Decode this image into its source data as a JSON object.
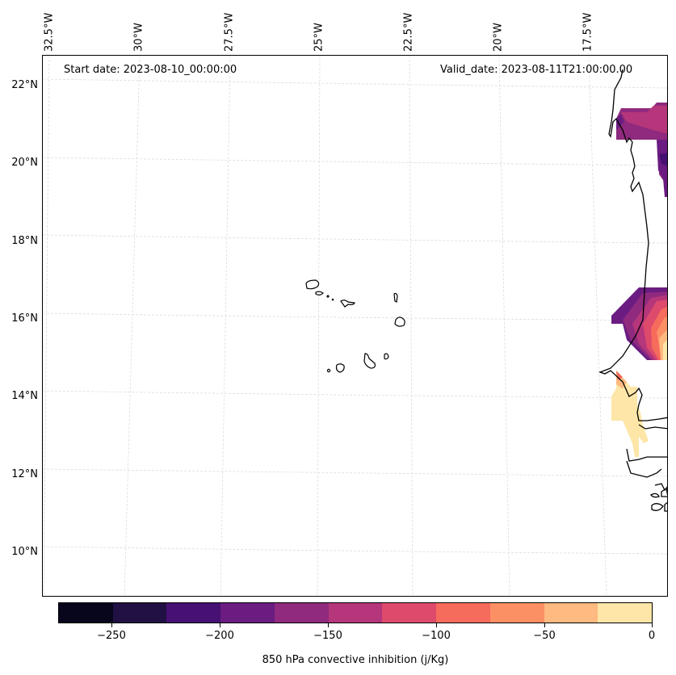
{
  "header": {
    "start_date": "Start date: 2023-08-10_00:00:00",
    "valid_date": "Valid_date: 2023-08-11T21:00:00.00"
  },
  "map": {
    "lon_labels": [
      "32.5°W",
      "30°W",
      "27.5°W",
      "25°W",
      "22.5°W",
      "20°W",
      "17.5°W"
    ],
    "lat_labels": [
      "22°N",
      "20°N",
      "18°N",
      "16°N",
      "14°N",
      "12°N",
      "10°N"
    ],
    "features": [
      "Cape Verde Islands",
      "West African coastline (Mauritania, Senegal, Gambia, Guinea-Bissau)"
    ]
  },
  "colorbar": {
    "title": "850 hPa convective inhibition (j/Kg)",
    "tick_labels": [
      "−250",
      "−200",
      "−150",
      "−100",
      "−50",
      "0"
    ],
    "colors": [
      "#07061c",
      "#211044",
      "#471173",
      "#6a1c81",
      "#8f2a7e",
      "#b5367a",
      "#dd4a6b",
      "#f56b5c",
      "#fc9065",
      "#feba80",
      "#fde6a7"
    ]
  },
  "chart_data": {
    "type": "heatmap",
    "title": "850 hPa convective inhibition",
    "colorbar_label": "850 hPa convective inhibition (j/Kg)",
    "levels": [
      -275,
      -250,
      -225,
      -200,
      -175,
      -150,
      -125,
      -100,
      -75,
      -50,
      -25,
      0
    ],
    "colorbar_ticks": [
      -250,
      -200,
      -150,
      -100,
      -50,
      0
    ],
    "x_ticks": [
      "32.5°W",
      "30°W",
      "27.5°W",
      "25°W",
      "22.5°W",
      "20°W",
      "17.5°W"
    ],
    "y_ticks": [
      "22°N",
      "20°N",
      "18°N",
      "16°N",
      "14°N",
      "12°N",
      "10°N"
    ],
    "lon_range": [
      -33,
      -16
    ],
    "lat_range": [
      9,
      22.5
    ],
    "regions": [
      {
        "name": "north-patch",
        "lat_range": [
          19.2,
          21.5
        ],
        "approx_values": [
          -175,
          -150,
          -125
        ]
      },
      {
        "name": "central-patch",
        "lat_range": [
          15,
          16.8
        ],
        "approx_values": [
          -200,
          -150,
          -100,
          -50,
          -25,
          0
        ]
      },
      {
        "name": "senegal-patch",
        "lat_range": [
          12.5,
          14.7
        ],
        "approx_values": [
          -75,
          -25,
          0
        ]
      }
    ],
    "grid": true
  }
}
